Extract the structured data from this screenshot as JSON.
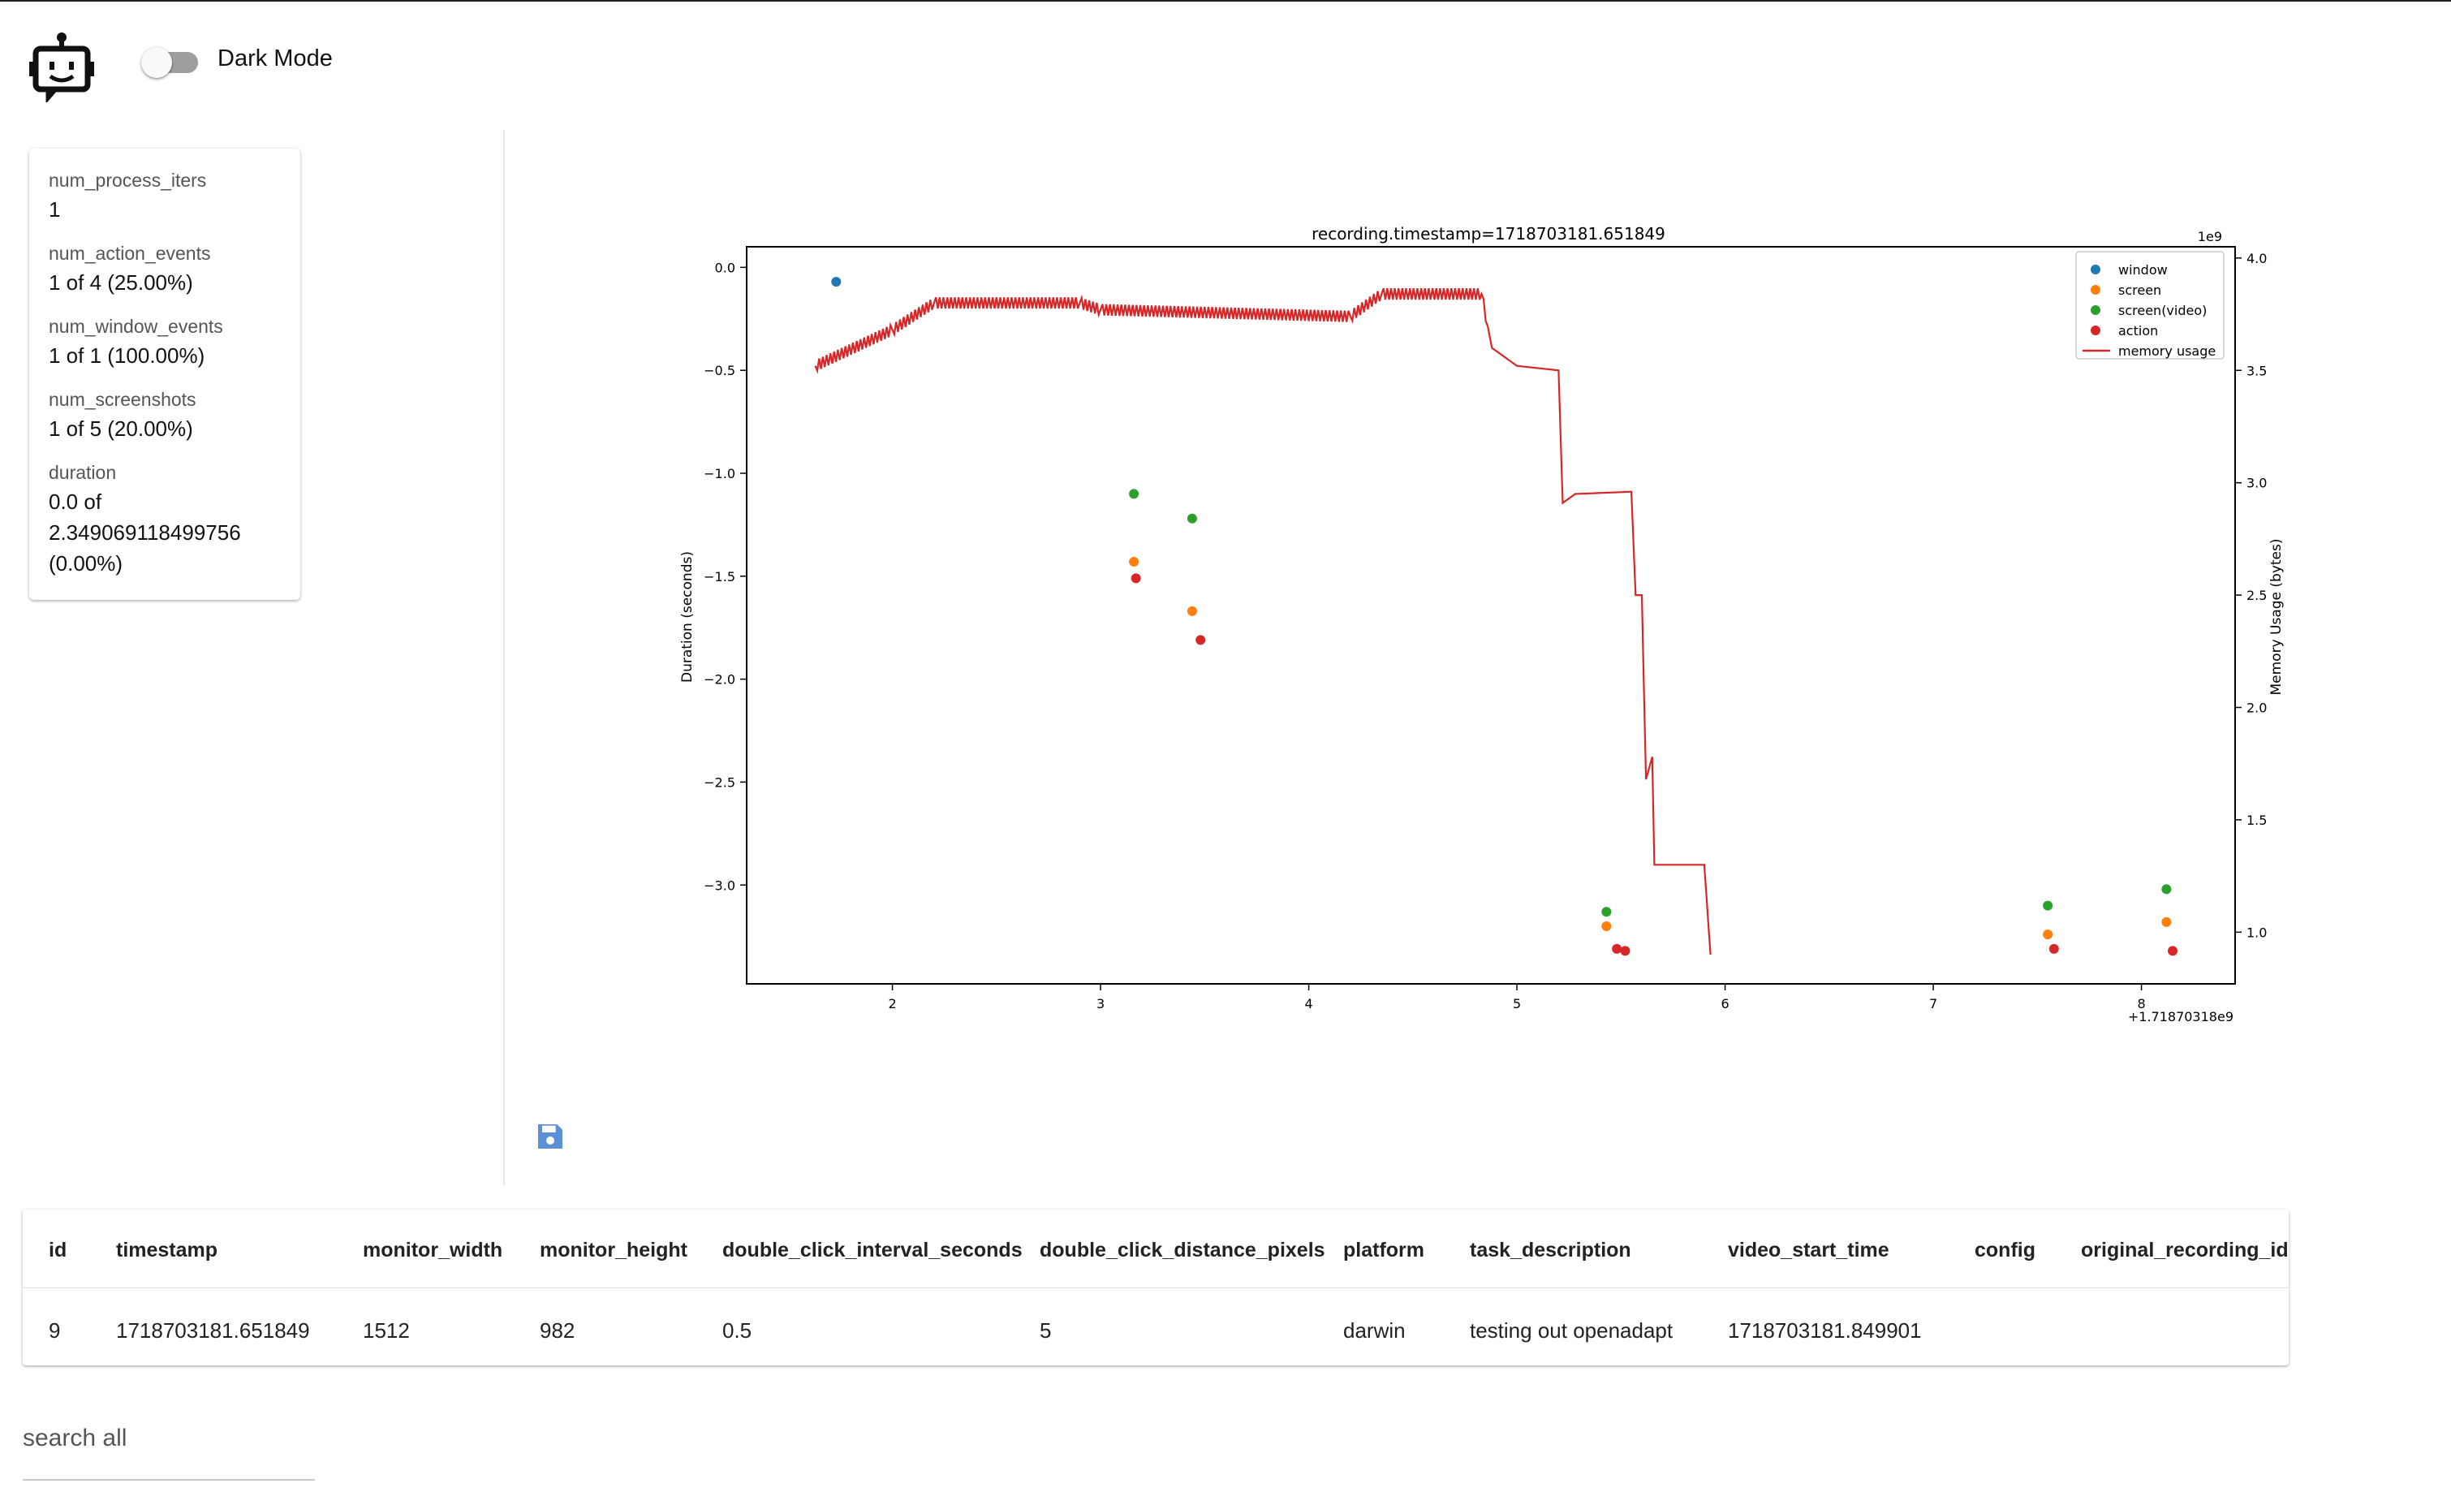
{
  "header": {
    "dark_mode_label": "Dark Mode",
    "dark_mode_on": false
  },
  "stats": [
    {
      "key": "num_process_iters",
      "value": "1"
    },
    {
      "key": "num_action_events",
      "value": "1 of 4 (25.00%)"
    },
    {
      "key": "num_window_events",
      "value": "1 of 1 (100.00%)"
    },
    {
      "key": "num_screenshots",
      "value": "1 of 5 (20.00%)"
    },
    {
      "key": "duration",
      "value_lines": [
        "0.0 of",
        "2.349069118499756",
        "(0.00%)"
      ]
    }
  ],
  "chart_data": {
    "type": "scatter",
    "title": "recording.timestamp=1718703181.651849",
    "xlabel": "",
    "ylabel": "Duration (seconds)",
    "y2label": "Memory Usage (bytes)",
    "x_offset_label": "+1.71870318e9",
    "y2_scale_label": "1e9",
    "xlim": [
      1.3,
      8.45
    ],
    "ylim": [
      -3.48,
      0.1
    ],
    "y2lim": [
      0.77,
      4.05
    ],
    "x_ticks": [
      "2",
      "3",
      "4",
      "5",
      "6",
      "7",
      "8"
    ],
    "x_tick_values": [
      2,
      3,
      4,
      5,
      6,
      7,
      8
    ],
    "y_ticks": [
      "0.0",
      "−0.5",
      "−1.0",
      "−1.5",
      "−2.0",
      "−2.5",
      "−3.0"
    ],
    "y_tick_values": [
      0,
      -0.5,
      -1.0,
      -1.5,
      -2.0,
      -2.5,
      -3.0
    ],
    "y2_ticks": [
      "1.0",
      "1.5",
      "2.0",
      "2.5",
      "3.0",
      "3.5",
      "4.0"
    ],
    "y2_tick_values": [
      1.0,
      1.5,
      2.0,
      2.5,
      3.0,
      3.5,
      4.0
    ],
    "legend_position": "top-right",
    "colors": {
      "window": "#1f77b4",
      "screen": "#ff7f0e",
      "screen(video)": "#2ca02c",
      "action": "#d62728",
      "memory usage": "#d62728"
    },
    "scatter_series": [
      {
        "name": "window",
        "points": [
          [
            1.73,
            -0.07
          ]
        ]
      },
      {
        "name": "screen",
        "points": [
          [
            3.16,
            -1.43
          ],
          [
            3.44,
            -1.67
          ],
          [
            5.43,
            -3.2
          ],
          [
            7.55,
            -3.24
          ],
          [
            8.12,
            -3.18
          ]
        ]
      },
      {
        "name": "screen(video)",
        "points": [
          [
            3.16,
            -1.1
          ],
          [
            3.44,
            -1.22
          ],
          [
            5.43,
            -3.13
          ],
          [
            7.55,
            -3.1
          ],
          [
            8.12,
            -3.02
          ]
        ]
      },
      {
        "name": "action",
        "points": [
          [
            3.17,
            -1.51
          ],
          [
            3.48,
            -1.81
          ],
          [
            5.48,
            -3.31
          ],
          [
            5.52,
            -3.32
          ],
          [
            7.58,
            -3.31
          ],
          [
            8.15,
            -3.32
          ]
        ]
      }
    ],
    "line_series": {
      "name": "memory usage",
      "points": [
        [
          1.63,
          3.52
        ],
        [
          2.0,
          3.68
        ],
        [
          2.2,
          3.8
        ],
        [
          2.9,
          3.8
        ],
        [
          3.0,
          3.77
        ],
        [
          4.2,
          3.74
        ],
        [
          4.35,
          3.84
        ],
        [
          4.83,
          3.84
        ],
        [
          4.88,
          3.6
        ],
        [
          5.0,
          3.52
        ],
        [
          5.2,
          3.5
        ],
        [
          5.22,
          2.91
        ],
        [
          5.28,
          2.95
        ],
        [
          5.55,
          2.96
        ],
        [
          5.57,
          2.5
        ],
        [
          5.6,
          2.5
        ],
        [
          5.62,
          1.68
        ],
        [
          5.65,
          1.78
        ],
        [
          5.66,
          1.3
        ],
        [
          5.9,
          1.3
        ],
        [
          5.93,
          0.9
        ]
      ]
    }
  },
  "table": {
    "columns": [
      "id",
      "timestamp",
      "monitor_width",
      "monitor_height",
      "double_click_interval_seconds",
      "double_click_distance_pixels",
      "platform",
      "task_description",
      "video_start_time",
      "config",
      "original_recording_id"
    ],
    "rows": [
      [
        "9",
        "1718703181.651849",
        "1512",
        "982",
        "0.5",
        "5",
        "darwin",
        "testing out openadapt",
        "1718703181.849901",
        "",
        ""
      ]
    ]
  },
  "search": {
    "placeholder": "search all",
    "value": ""
  }
}
